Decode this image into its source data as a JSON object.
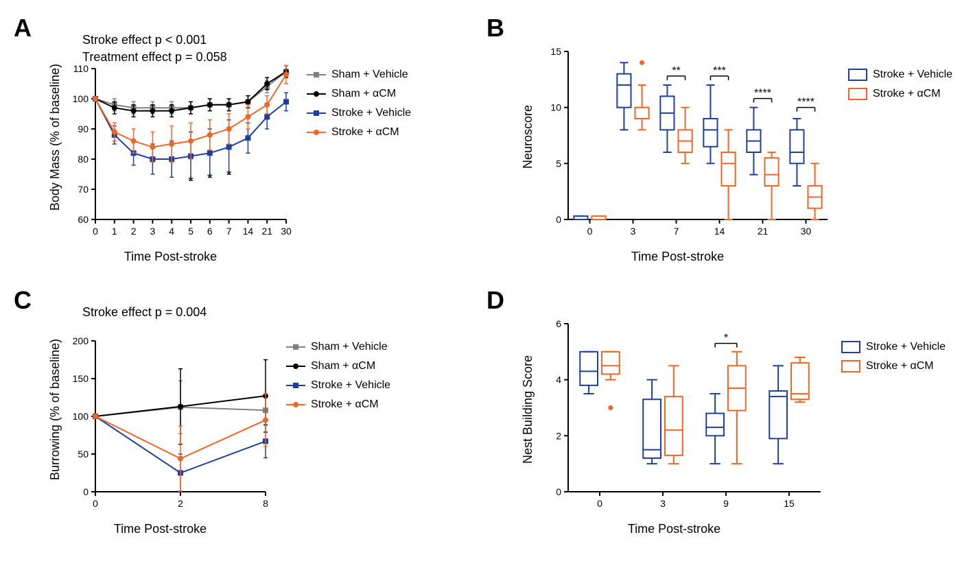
{
  "colors": {
    "sham_vehicle": "#808080",
    "sham_acm": "#000000",
    "stroke_vehicle": "#1f3f9e",
    "stroke_acm": "#f26522",
    "axis": "#000000",
    "bg": "#ffffff"
  },
  "font": {
    "axis_label_pt": 18,
    "tick_pt": 14,
    "legend_pt": 16,
    "letter_pt": 36,
    "annot_pt": 18
  },
  "panelA": {
    "letter": "A",
    "type": "line",
    "ylabel": "Body Mass (% of baseline)",
    "xlabel": "Time Post-stroke",
    "ylim": [
      60,
      110
    ],
    "ytick_step": 10,
    "x_categories": [
      "0",
      "1",
      "2",
      "3",
      "4",
      "5",
      "6",
      "7",
      "14",
      "21",
      "30"
    ],
    "annotations": [
      "Stroke effect p < 0.001",
      "Treatment effect p = 0.058"
    ],
    "series": [
      {
        "name": "Sham + Vehicle",
        "color_key": "sham_vehicle",
        "marker": "square",
        "y": [
          100,
          98,
          97,
          97,
          97,
          97,
          98,
          98,
          99,
          104,
          109
        ],
        "err": [
          0,
          2,
          2,
          2,
          2,
          2,
          2,
          2,
          2,
          2,
          2
        ]
      },
      {
        "name": "Sham + αCM",
        "color_key": "sham_acm",
        "marker": "circle",
        "y": [
          100,
          97,
          96,
          96,
          96,
          97,
          98,
          98,
          99,
          105,
          109
        ],
        "err": [
          0,
          2,
          2,
          2,
          2,
          2,
          2,
          2,
          2,
          2,
          2
        ]
      },
      {
        "name": "Stroke + Vehicle",
        "color_key": "stroke_vehicle",
        "marker": "square",
        "y": [
          100,
          88,
          82,
          80,
          80,
          81,
          82,
          84,
          87,
          94,
          99
        ],
        "err": [
          0,
          3,
          4,
          5,
          6,
          8,
          8,
          9,
          5,
          4,
          3
        ]
      },
      {
        "name": "Stroke + αCM",
        "color_key": "stroke_acm",
        "marker": "circle",
        "y": [
          100,
          89,
          86,
          84,
          85,
          86,
          88,
          90,
          94,
          98,
          108
        ],
        "err": [
          0,
          3,
          4,
          5,
          6,
          6,
          5,
          5,
          4,
          3,
          3
        ]
      }
    ],
    "sig_marks": [
      {
        "x_idx": 5,
        "label": "*",
        "y": 73
      },
      {
        "x_idx": 6,
        "label": "*",
        "y": 74
      },
      {
        "x_idx": 7,
        "label": "*",
        "y": 75
      }
    ],
    "legend_entries": [
      {
        "label": "Sham + Vehicle",
        "color_key": "sham_vehicle",
        "marker": "square"
      },
      {
        "label": "Sham + αCM",
        "color_key": "sham_acm",
        "marker": "circle"
      },
      {
        "label": "Stroke + Vehicle",
        "color_key": "stroke_vehicle",
        "marker": "square"
      },
      {
        "label": "Stroke + αCM",
        "color_key": "stroke_acm",
        "marker": "circle"
      }
    ],
    "line_width": 2,
    "marker_size": 7
  },
  "panelB": {
    "letter": "B",
    "type": "boxplot",
    "ylabel": "Neuroscore",
    "xlabel": "Time Post-stroke",
    "ylim": [
      0,
      15
    ],
    "ytick_step": 5,
    "x_categories": [
      "0",
      "3",
      "7",
      "14",
      "21",
      "30"
    ],
    "groups": [
      {
        "name": "Stroke + Vehicle",
        "color_key": "stroke_vehicle",
        "boxes": [
          {
            "min": 0,
            "q1": 0,
            "med": 0,
            "q3": 0.3,
            "max": 0.3
          },
          {
            "min": 8,
            "q1": 10,
            "med": 12,
            "q3": 13,
            "max": 14
          },
          {
            "min": 6,
            "q1": 8,
            "med": 9.5,
            "q3": 11,
            "max": 12
          },
          {
            "min": 5,
            "q1": 6.5,
            "med": 8,
            "q3": 9,
            "max": 12
          },
          {
            "min": 4,
            "q1": 6,
            "med": 7,
            "q3": 8,
            "max": 10
          },
          {
            "min": 3,
            "q1": 5,
            "med": 6,
            "q3": 8,
            "max": 9
          }
        ]
      },
      {
        "name": "Stroke + αCM",
        "color_key": "stroke_acm",
        "boxes": [
          {
            "min": 0,
            "q1": 0,
            "med": 0,
            "q3": 0.3,
            "max": 0.3
          },
          {
            "min": 8,
            "q1": 9,
            "med": 10,
            "q3": 10,
            "max": 12,
            "outliers": [
              14
            ]
          },
          {
            "min": 5,
            "q1": 6,
            "med": 7,
            "q3": 8,
            "max": 10
          },
          {
            "min": 0,
            "q1": 3,
            "med": 5,
            "q3": 6,
            "max": 8
          },
          {
            "min": 0,
            "q1": 3,
            "med": 4,
            "q3": 5.5,
            "max": 6
          },
          {
            "min": 0,
            "q1": 1,
            "med": 2,
            "q3": 3,
            "max": 5
          }
        ]
      }
    ],
    "sig_brackets": [
      {
        "x_idx": 2,
        "label": "**",
        "y": 12.8
      },
      {
        "x_idx": 3,
        "label": "***",
        "y": 12.8
      },
      {
        "x_idx": 4,
        "label": "****",
        "y": 10.8
      },
      {
        "x_idx": 5,
        "label": "****",
        "y": 10.0
      }
    ],
    "legend_entries": [
      {
        "label": "Stroke + Vehicle",
        "color_key": "stroke_vehicle"
      },
      {
        "label": "Stroke + αCM",
        "color_key": "stroke_acm"
      }
    ],
    "box_width": 0.32,
    "line_width": 2
  },
  "panelC": {
    "letter": "C",
    "type": "line",
    "ylabel": "Burrowing (% of baseline)",
    "xlabel": "Time Post-stroke",
    "ylim": [
      0,
      200
    ],
    "ytick_step": 50,
    "x_categories": [
      "0",
      "2",
      "8"
    ],
    "annotations": [
      "Stroke effect p = 0.004"
    ],
    "series": [
      {
        "name": "Sham + Vehicle",
        "color_key": "sham_vehicle",
        "marker": "square",
        "y": [
          100,
          112,
          108
        ],
        "err": [
          0,
          35,
          20
        ]
      },
      {
        "name": "Sham + αCM",
        "color_key": "sham_acm",
        "marker": "circle",
        "y": [
          100,
          113,
          127
        ],
        "err": [
          0,
          50,
          48
        ]
      },
      {
        "name": "Stroke + Vehicle",
        "color_key": "stroke_vehicle",
        "marker": "square",
        "y": [
          100,
          25,
          67
        ],
        "err": [
          0,
          25,
          22
        ]
      },
      {
        "name": "Stroke + αCM",
        "color_key": "stroke_acm",
        "marker": "circle",
        "y": [
          100,
          44,
          95
        ],
        "err": [
          0,
          43,
          35
        ]
      }
    ],
    "legend_entries": [
      {
        "label": "Sham + Vehicle",
        "color_key": "sham_vehicle",
        "marker": "square"
      },
      {
        "label": "Sham + αCM",
        "color_key": "sham_acm",
        "marker": "circle"
      },
      {
        "label": "Stroke + Vehicle",
        "color_key": "stroke_vehicle",
        "marker": "square"
      },
      {
        "label": "Stroke + αCM",
        "color_key": "stroke_acm",
        "marker": "circle"
      }
    ],
    "line_width": 2,
    "marker_size": 7
  },
  "panelD": {
    "letter": "D",
    "type": "boxplot",
    "ylabel": "Nest Building Score",
    "xlabel": "Time Post-stroke",
    "ylim": [
      0,
      6
    ],
    "ytick_step": 2,
    "x_categories": [
      "0",
      "3",
      "9",
      "15"
    ],
    "groups": [
      {
        "name": "Stroke + Vehicle",
        "color_key": "stroke_vehicle",
        "boxes": [
          {
            "min": 3.5,
            "q1": 3.8,
            "med": 4.3,
            "q3": 5,
            "max": 5
          },
          {
            "min": 1,
            "q1": 1.2,
            "med": 1.5,
            "q3": 3.3,
            "max": 4
          },
          {
            "min": 1,
            "q1": 2,
            "med": 2.3,
            "q3": 2.8,
            "max": 3.5
          },
          {
            "min": 1,
            "q1": 1.9,
            "med": 3.4,
            "q3": 3.6,
            "max": 4.5
          }
        ]
      },
      {
        "name": "Stroke + αCM",
        "color_key": "stroke_acm",
        "boxes": [
          {
            "min": 4,
            "q1": 4.2,
            "med": 4.5,
            "q3": 5,
            "max": 5,
            "outliers": [
              3
            ]
          },
          {
            "min": 1,
            "q1": 1.3,
            "med": 2.2,
            "q3": 3.4,
            "max": 4.5
          },
          {
            "min": 1,
            "q1": 2.9,
            "med": 3.7,
            "q3": 4.5,
            "max": 5
          },
          {
            "min": 3.2,
            "q1": 3.3,
            "med": 3.5,
            "q3": 4.6,
            "max": 4.8
          }
        ]
      }
    ],
    "sig_brackets": [
      {
        "x_idx": 2,
        "label": "*",
        "y": 5.3
      }
    ],
    "legend_entries": [
      {
        "label": "Stroke + Vehicle",
        "color_key": "stroke_vehicle"
      },
      {
        "label": "Stroke + αCM",
        "color_key": "stroke_acm"
      }
    ],
    "box_width": 0.28,
    "line_width": 2
  }
}
